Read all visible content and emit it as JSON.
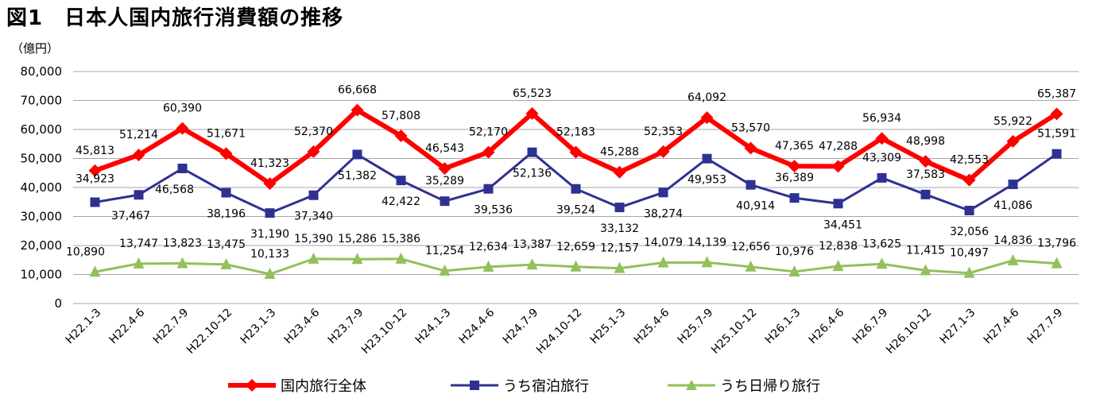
{
  "title": "図1　日本人国内旅行消費額の推移",
  "unit_label": "（億円）",
  "legend": {
    "total": "国内旅行全体",
    "overnight": "うち宿泊旅行",
    "daytrip": "うち日帰り旅行"
  },
  "chart_data": {
    "type": "line",
    "title": "図1　日本人国内旅行消費額の推移",
    "ylabel": "（億円）",
    "xlabel": "",
    "ylim": [
      0,
      80000
    ],
    "yticks": [
      0,
      10000,
      20000,
      30000,
      40000,
      50000,
      60000,
      70000,
      80000
    ],
    "ytick_labels": [
      "0",
      "10,000",
      "20,000",
      "30,000",
      "40,000",
      "50,000",
      "60,000",
      "70,000",
      "80,000"
    ],
    "grid": true,
    "legend_position": "bottom",
    "categories": [
      "H22.1-3",
      "H22.4-6",
      "H22.7-9",
      "H22.10-12",
      "H23.1-3",
      "H23.4-6",
      "H23.7-9",
      "H23.10-12",
      "H24.1-3",
      "H24.4-6",
      "H24.7-9",
      "H24.10-12",
      "H25.1-3",
      "H25.4-6",
      "H25.7-9",
      "H25.10-12",
      "H26.1-3",
      "H26.4-6",
      "H26.7-9",
      "H26.10-12",
      "H27.1-3",
      "H27.4-6",
      "H27.7-9"
    ],
    "series": [
      {
        "name": "国内旅行全体",
        "color": "#ff0000",
        "marker": "diamond",
        "values": [
          45813,
          51214,
          60390,
          51671,
          41323,
          52370,
          66668,
          57808,
          46543,
          52170,
          65523,
          52183,
          45288,
          52353,
          64092,
          53570,
          47365,
          47288,
          56934,
          48998,
          42553,
          55922,
          65387
        ],
        "labels": [
          "45,813",
          "51,214",
          "60,390",
          "51,671",
          "41,323",
          "52,370",
          "66,668",
          "57,808",
          "46,543",
          "52,170",
          "65,523",
          "52,183",
          "45,288",
          "52,353",
          "64,092",
          "53,570",
          "47,365",
          "47,288",
          "56,934",
          "48,998",
          "42,553",
          "55,922",
          "65,387"
        ]
      },
      {
        "name": "うち宿泊旅行",
        "color": "#2e3192",
        "marker": "square",
        "values": [
          34923,
          37467,
          46568,
          38196,
          31190,
          37340,
          51382,
          42422,
          35289,
          39536,
          52136,
          39524,
          33132,
          38274,
          49953,
          40914,
          36389,
          34451,
          43309,
          37583,
          32056,
          41086,
          51591
        ],
        "labels": [
          "34,923",
          "37,467",
          "46,568",
          "38,196",
          "31,190",
          "37,340",
          "51,382",
          "42,422",
          "35,289",
          "39,536",
          "52,136",
          "39,524",
          "33,132",
          "38,274",
          "49,953",
          "40,914",
          "36,389",
          "34,451",
          "43,309",
          "37,583",
          "32,056",
          "41,086",
          "51,591"
        ]
      },
      {
        "name": "うち日帰り旅行",
        "color": "#92c05a",
        "marker": "triangle",
        "values": [
          10890,
          13747,
          13823,
          13475,
          10133,
          15390,
          15286,
          15386,
          11254,
          12634,
          13387,
          12659,
          12157,
          14079,
          14139,
          12656,
          10976,
          12838,
          13625,
          11415,
          10497,
          14836,
          13796
        ],
        "labels": [
          "10,890",
          "13,747",
          "13,823",
          "13,475",
          "10,133",
          "15,390",
          "15,286",
          "15,386",
          "11,254",
          "12,634",
          "13,387",
          "12,659",
          "12,157",
          "14,079",
          "14,139",
          "12,656",
          "10,976",
          "12,838",
          "13,625",
          "11,415",
          "10,497",
          "14,836",
          "13,796"
        ]
      }
    ]
  }
}
